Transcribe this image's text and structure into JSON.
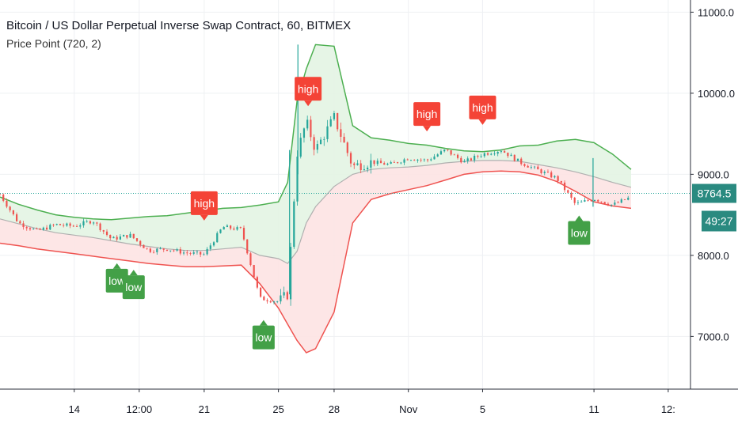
{
  "legend": {
    "title": "Bitcoin / US Dollar Perpetual Inverse Swap Contract, 60, BITMEX",
    "indicator": "Price Point (720, 2)"
  },
  "colors": {
    "upper_band": "#4caf50",
    "lower_band": "#ef5350",
    "middle_line": "#b0b0b0",
    "upper_fill": "#e3f4e3",
    "lower_fill": "#fde3e3",
    "candle_up": "#26a69a",
    "candle_down": "#ef5350",
    "high_label": "#f44336",
    "low_label": "#43a047",
    "price_line": "#26a69a",
    "price_badge": "#2a8a80"
  },
  "chart_data": {
    "type": "line",
    "title": "Bitcoin / US Dollar Perpetual Inverse Swap Contract, 60, BITMEX",
    "xlabel": "",
    "ylabel": "",
    "ylim": [
      6350,
      11150
    ],
    "y_ticks": [
      "11000.0",
      "10000.0",
      "9000.0",
      "8000.0",
      "7000.0"
    ],
    "y_tick_values": [
      11000,
      10000,
      9000,
      8000,
      7000
    ],
    "x_ticks": [
      "14",
      "12:00",
      "21",
      "25",
      "28",
      "Nov",
      "5",
      "11",
      "12:"
    ],
    "x_tick_days": [
      14,
      17.5,
      21,
      25,
      28,
      32,
      36,
      42,
      46
    ],
    "x_range_days": [
      10,
      47.2
    ],
    "grid": true,
    "last_price": "8764.5",
    "last_price_value": 8764.5,
    "countdown": "49:27",
    "x_day": [
      10,
      11,
      12,
      13,
      14,
      15,
      16,
      17,
      18,
      19,
      20,
      21,
      22,
      23,
      24,
      25,
      25.5,
      26,
      26.5,
      27,
      28,
      29,
      30,
      31,
      32,
      33,
      34,
      35,
      36,
      37,
      38,
      39,
      40,
      41,
      42,
      43,
      44
    ],
    "series": [
      {
        "name": "high band",
        "values": [
          8720,
          8630,
          8560,
          8500,
          8470,
          8450,
          8440,
          8460,
          8480,
          8490,
          8520,
          8550,
          8580,
          8590,
          8620,
          8660,
          8900,
          9900,
          10300,
          10600,
          10580,
          9600,
          9450,
          9420,
          9380,
          9360,
          9320,
          9290,
          9280,
          9300,
          9350,
          9360,
          9410,
          9430,
          9390,
          9250,
          9060
        ]
      },
      {
        "name": "middle",
        "values": [
          8450,
          8390,
          8330,
          8280,
          8250,
          8220,
          8180,
          8140,
          8110,
          8080,
          8060,
          8060,
          8080,
          8100,
          8000,
          7960,
          7900,
          8050,
          8400,
          8600,
          8850,
          9000,
          9060,
          9080,
          9090,
          9110,
          9140,
          9160,
          9170,
          9170,
          9160,
          9120,
          9080,
          9030,
          8970,
          8900,
          8840
        ]
      },
      {
        "name": "low band",
        "values": [
          8150,
          8120,
          8080,
          8050,
          8020,
          7990,
          7960,
          7930,
          7900,
          7880,
          7860,
          7860,
          7870,
          7880,
          7650,
          7350,
          7150,
          6950,
          6800,
          6850,
          7300,
          8400,
          8690,
          8760,
          8810,
          8860,
          8930,
          9000,
          9030,
          9040,
          9030,
          8990,
          8910,
          8790,
          8660,
          8610,
          8580
        ]
      },
      {
        "name": "close",
        "values": [
          8750,
          8400,
          8300,
          8380,
          8360,
          8430,
          8200,
          8250,
          8060,
          8080,
          8030,
          8010,
          8350,
          8320,
          7470,
          7430,
          7520,
          9250,
          9650,
          9300,
          9700,
          9100,
          9150,
          9120,
          9200,
          9170,
          9300,
          9150,
          9250,
          9300,
          9150,
          9050,
          8950,
          8630,
          8700,
          8620,
          8720
        ]
      }
    ],
    "markers": [
      {
        "kind": "high",
        "label": "high",
        "day": 21,
        "price": 8420
      },
      {
        "kind": "high",
        "label": "high",
        "day": 26.6,
        "price": 9830
      },
      {
        "kind": "high",
        "label": "high",
        "day": 33,
        "price": 9520
      },
      {
        "kind": "high",
        "label": "high",
        "day": 36,
        "price": 9600
      },
      {
        "kind": "low",
        "label": "low",
        "day": 16.3,
        "price": 7980
      },
      {
        "kind": "low",
        "label": "low",
        "day": 17.2,
        "price": 7900
      },
      {
        "kind": "low",
        "label": "low",
        "day": 24.2,
        "price": 7280
      },
      {
        "kind": "low",
        "label": "low",
        "day": 41.2,
        "price": 8570
      }
    ]
  }
}
